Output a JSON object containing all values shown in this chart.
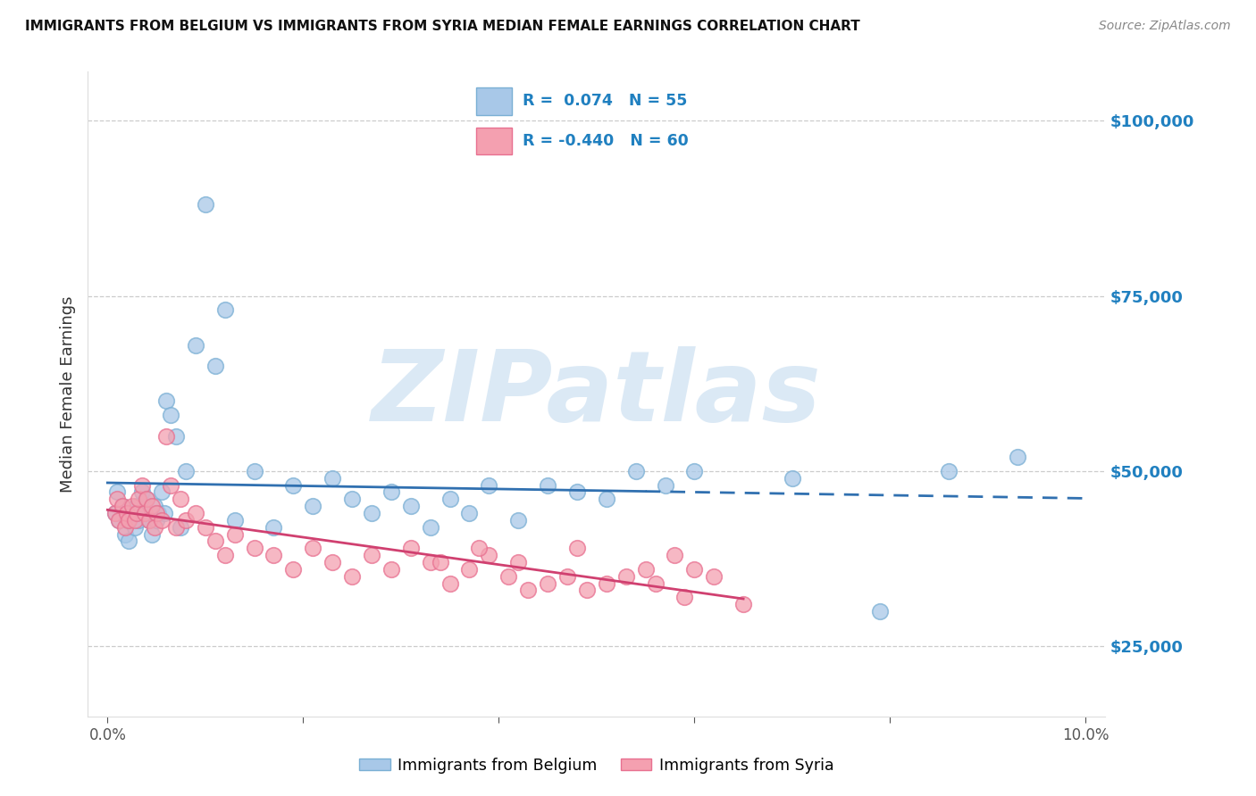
{
  "title": "IMMIGRANTS FROM BELGIUM VS IMMIGRANTS FROM SYRIA MEDIAN FEMALE EARNINGS CORRELATION CHART",
  "source": "Source: ZipAtlas.com",
  "ylabel": "Median Female Earnings",
  "xlim": [
    -0.002,
    0.102
  ],
  "ylim": [
    15000,
    107000
  ],
  "yticks": [
    25000,
    50000,
    75000,
    100000
  ],
  "ytick_labels": [
    "$25,000",
    "$50,000",
    "$75,000",
    "$100,000"
  ],
  "belgium_R": 0.074,
  "belgium_N": 55,
  "syria_R": -0.44,
  "syria_N": 60,
  "legend_labels": [
    "Immigrants from Belgium",
    "Immigrants from Syria"
  ],
  "blue_color": "#a8c8e8",
  "blue_edge_color": "#7aafd4",
  "pink_color": "#f4a0b0",
  "pink_edge_color": "#e87090",
  "blue_line_color": "#3070b0",
  "pink_line_color": "#d04070",
  "watermark": "ZIPatlas",
  "background_color": "#ffffff",
  "belgium_x": [
    0.0008,
    0.001,
    0.0012,
    0.0015,
    0.0018,
    0.002,
    0.0022,
    0.0025,
    0.0028,
    0.003,
    0.0032,
    0.0035,
    0.0038,
    0.004,
    0.0043,
    0.0045,
    0.0048,
    0.005,
    0.0052,
    0.0055,
    0.0058,
    0.006,
    0.0065,
    0.007,
    0.0075,
    0.008,
    0.009,
    0.01,
    0.011,
    0.012,
    0.013,
    0.015,
    0.017,
    0.019,
    0.021,
    0.023,
    0.025,
    0.027,
    0.029,
    0.031,
    0.033,
    0.035,
    0.037,
    0.039,
    0.042,
    0.045,
    0.048,
    0.051,
    0.054,
    0.057,
    0.06,
    0.07,
    0.079,
    0.086,
    0.093
  ],
  "belgium_y": [
    44000,
    47000,
    43000,
    45000,
    41000,
    43000,
    40000,
    44000,
    42000,
    45000,
    43000,
    47000,
    44000,
    46000,
    43000,
    41000,
    45000,
    43000,
    44000,
    47000,
    44000,
    60000,
    58000,
    55000,
    42000,
    50000,
    68000,
    88000,
    65000,
    73000,
    43000,
    50000,
    42000,
    48000,
    45000,
    49000,
    46000,
    44000,
    47000,
    45000,
    42000,
    46000,
    44000,
    48000,
    43000,
    48000,
    47000,
    46000,
    50000,
    48000,
    50000,
    49000,
    30000,
    50000,
    52000
  ],
  "syria_x": [
    0.0008,
    0.001,
    0.0012,
    0.0015,
    0.0018,
    0.002,
    0.0022,
    0.0025,
    0.0028,
    0.003,
    0.0032,
    0.0035,
    0.0038,
    0.004,
    0.0043,
    0.0045,
    0.0048,
    0.005,
    0.0055,
    0.006,
    0.0065,
    0.007,
    0.0075,
    0.008,
    0.009,
    0.01,
    0.011,
    0.012,
    0.013,
    0.015,
    0.017,
    0.019,
    0.021,
    0.023,
    0.025,
    0.027,
    0.029,
    0.031,
    0.033,
    0.035,
    0.037,
    0.039,
    0.041,
    0.043,
    0.045,
    0.047,
    0.049,
    0.051,
    0.053,
    0.056,
    0.059,
    0.062,
    0.065,
    0.06,
    0.058,
    0.055,
    0.048,
    0.042,
    0.038,
    0.034
  ],
  "syria_y": [
    44000,
    46000,
    43000,
    45000,
    42000,
    44000,
    43000,
    45000,
    43000,
    44000,
    46000,
    48000,
    44000,
    46000,
    43000,
    45000,
    42000,
    44000,
    43000,
    55000,
    48000,
    42000,
    46000,
    43000,
    44000,
    42000,
    40000,
    38000,
    41000,
    39000,
    38000,
    36000,
    39000,
    37000,
    35000,
    38000,
    36000,
    39000,
    37000,
    34000,
    36000,
    38000,
    35000,
    33000,
    34000,
    35000,
    33000,
    34000,
    35000,
    34000,
    32000,
    35000,
    31000,
    36000,
    38000,
    36000,
    39000,
    37000,
    39000,
    37000
  ]
}
